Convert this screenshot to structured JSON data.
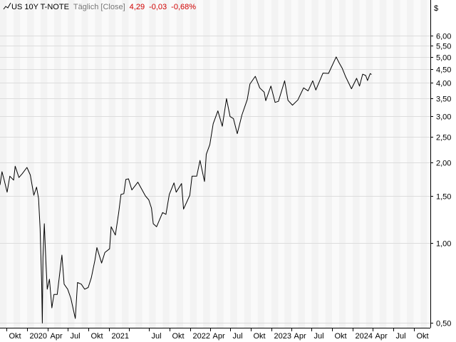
{
  "header": {
    "chart_icon": "line-chart-icon",
    "symbol": "US 10Y T-NOTE",
    "mode": "Täglich [Close]",
    "last": "4,29",
    "change": "-0,03",
    "change_pct": "-0,68%",
    "change_color": "#d00000"
  },
  "chart_data": {
    "type": "line",
    "title": "US 10Y T-NOTE",
    "currency": "$",
    "y_scale": "log",
    "ylim": [
      0.48,
      7.0
    ],
    "y_ticks": [
      {
        "value": 6.0,
        "label": "6,00"
      },
      {
        "value": 5.5,
        "label": "5,50"
      },
      {
        "value": 5.0,
        "label": "5,00"
      },
      {
        "value": 4.5,
        "label": "4,50"
      },
      {
        "value": 4.0,
        "label": "4,00"
      },
      {
        "value": 3.5,
        "label": "3,50"
      },
      {
        "value": 3.0,
        "label": "3,00"
      },
      {
        "value": 2.5,
        "label": "2,50"
      },
      {
        "value": 2.0,
        "label": "2,00"
      },
      {
        "value": 1.5,
        "label": "1,50"
      },
      {
        "value": 1.0,
        "label": "1,00"
      },
      {
        "value": 0.5,
        "label": "0,50"
      }
    ],
    "xlim": [
      "2019-09-01",
      "2024-12-15"
    ],
    "x_ticks": [
      {
        "date": "2019-10-01",
        "label": "Okt"
      },
      {
        "date": "2020-01-01",
        "label": "2020"
      },
      {
        "date": "2020-04-01",
        "label": "Apr"
      },
      {
        "date": "2020-07-01",
        "label": "Jul"
      },
      {
        "date": "2020-10-01",
        "label": "Okt"
      },
      {
        "date": "2021-01-01",
        "label": "2021"
      },
      {
        "date": "2021-04-01",
        "label": ""
      },
      {
        "date": "2021-07-01",
        "label": "Jul"
      },
      {
        "date": "2021-10-01",
        "label": "Okt"
      },
      {
        "date": "2022-01-01",
        "label": "2022"
      },
      {
        "date": "2022-04-01",
        "label": "Apr"
      },
      {
        "date": "2022-07-01",
        "label": "Jul"
      },
      {
        "date": "2022-10-01",
        "label": "Okt"
      },
      {
        "date": "2023-01-01",
        "label": "2023"
      },
      {
        "date": "2023-04-01",
        "label": "Apr"
      },
      {
        "date": "2023-07-01",
        "label": "Jul"
      },
      {
        "date": "2023-10-01",
        "label": "Okt"
      },
      {
        "date": "2024-01-01",
        "label": "2024"
      },
      {
        "date": "2024-04-01",
        "label": "Apr"
      },
      {
        "date": "2024-07-01",
        "label": "Jul"
      },
      {
        "date": "2024-10-01",
        "label": "Okt"
      }
    ],
    "series": [
      {
        "name": "US 10Y T-NOTE",
        "color": "#000000",
        "points": [
          [
            "2019-09-01",
            1.65
          ],
          [
            "2019-09-10",
            1.85
          ],
          [
            "2019-09-20",
            1.72
          ],
          [
            "2019-10-03",
            1.55
          ],
          [
            "2019-10-15",
            1.78
          ],
          [
            "2019-11-01",
            1.72
          ],
          [
            "2019-11-08",
            1.94
          ],
          [
            "2019-11-25",
            1.76
          ],
          [
            "2019-12-10",
            1.82
          ],
          [
            "2019-12-31",
            1.92
          ],
          [
            "2020-01-15",
            1.8
          ],
          [
            "2020-01-31",
            1.51
          ],
          [
            "2020-02-12",
            1.62
          ],
          [
            "2020-02-21",
            1.47
          ],
          [
            "2020-02-28",
            1.13
          ],
          [
            "2020-03-06",
            0.7
          ],
          [
            "2020-03-09",
            0.5
          ],
          [
            "2020-03-12",
            0.88
          ],
          [
            "2020-03-18",
            1.18
          ],
          [
            "2020-03-25",
            0.85
          ],
          [
            "2020-03-31",
            0.67
          ],
          [
            "2020-04-10",
            0.73
          ],
          [
            "2020-04-21",
            0.57
          ],
          [
            "2020-04-30",
            0.64
          ],
          [
            "2020-05-15",
            0.64
          ],
          [
            "2020-06-05",
            0.9
          ],
          [
            "2020-06-15",
            0.7
          ],
          [
            "2020-07-01",
            0.67
          ],
          [
            "2020-07-15",
            0.62
          ],
          [
            "2020-08-04",
            0.52
          ],
          [
            "2020-08-14",
            0.71
          ],
          [
            "2020-08-31",
            0.7
          ],
          [
            "2020-09-15",
            0.67
          ],
          [
            "2020-10-01",
            0.68
          ],
          [
            "2020-10-15",
            0.74
          ],
          [
            "2020-10-31",
            0.86
          ],
          [
            "2020-11-09",
            0.96
          ],
          [
            "2020-11-30",
            0.84
          ],
          [
            "2020-12-15",
            0.92
          ],
          [
            "2021-01-05",
            0.95
          ],
          [
            "2021-01-12",
            1.15
          ],
          [
            "2021-01-31",
            1.07
          ],
          [
            "2021-02-15",
            1.3
          ],
          [
            "2021-02-25",
            1.52
          ],
          [
            "2021-03-10",
            1.53
          ],
          [
            "2021-03-19",
            1.73
          ],
          [
            "2021-03-31",
            1.74
          ],
          [
            "2021-04-15",
            1.58
          ],
          [
            "2021-05-12",
            1.69
          ],
          [
            "2021-05-31",
            1.58
          ],
          [
            "2021-06-15",
            1.5
          ],
          [
            "2021-06-30",
            1.45
          ],
          [
            "2021-07-12",
            1.35
          ],
          [
            "2021-07-20",
            1.18
          ],
          [
            "2021-08-04",
            1.15
          ],
          [
            "2021-08-31",
            1.3
          ],
          [
            "2021-09-15",
            1.28
          ],
          [
            "2021-09-30",
            1.52
          ],
          [
            "2021-10-21",
            1.68
          ],
          [
            "2021-10-31",
            1.55
          ],
          [
            "2021-11-24",
            1.67
          ],
          [
            "2021-12-03",
            1.34
          ],
          [
            "2021-12-31",
            1.51
          ],
          [
            "2022-01-10",
            1.78
          ],
          [
            "2022-01-31",
            1.78
          ],
          [
            "2022-02-15",
            2.04
          ],
          [
            "2022-03-07",
            1.7
          ],
          [
            "2022-03-15",
            2.15
          ],
          [
            "2022-03-31",
            2.34
          ],
          [
            "2022-04-15",
            2.8
          ],
          [
            "2022-05-06",
            3.13
          ],
          [
            "2022-05-26",
            2.74
          ],
          [
            "2022-06-14",
            3.48
          ],
          [
            "2022-06-30",
            2.98
          ],
          [
            "2022-07-15",
            2.93
          ],
          [
            "2022-08-01",
            2.57
          ],
          [
            "2022-08-22",
            3.02
          ],
          [
            "2022-09-15",
            3.45
          ],
          [
            "2022-09-27",
            3.95
          ],
          [
            "2022-10-21",
            4.22
          ],
          [
            "2022-11-10",
            3.82
          ],
          [
            "2022-11-30",
            3.68
          ],
          [
            "2022-12-07",
            3.42
          ],
          [
            "2022-12-30",
            3.88
          ],
          [
            "2023-01-18",
            3.37
          ],
          [
            "2023-02-02",
            3.4
          ],
          [
            "2023-03-02",
            4.06
          ],
          [
            "2023-03-17",
            3.43
          ],
          [
            "2023-04-06",
            3.29
          ],
          [
            "2023-04-30",
            3.44
          ],
          [
            "2023-05-26",
            3.82
          ],
          [
            "2023-06-15",
            3.72
          ],
          [
            "2023-07-06",
            4.06
          ],
          [
            "2023-07-20",
            3.75
          ],
          [
            "2023-08-21",
            4.34
          ],
          [
            "2023-09-15",
            4.33
          ],
          [
            "2023-10-19",
            4.99
          ],
          [
            "2023-11-01",
            4.75
          ],
          [
            "2023-11-15",
            4.53
          ],
          [
            "2023-12-01",
            4.2
          ],
          [
            "2023-12-27",
            3.79
          ],
          [
            "2024-01-19",
            4.15
          ],
          [
            "2024-02-01",
            3.88
          ],
          [
            "2024-02-15",
            4.3
          ],
          [
            "2024-02-29",
            4.25
          ],
          [
            "2024-03-08",
            4.07
          ],
          [
            "2024-03-20",
            4.32
          ],
          [
            "2024-03-26",
            4.29
          ]
        ]
      }
    ],
    "grid": true,
    "legend": "none"
  }
}
